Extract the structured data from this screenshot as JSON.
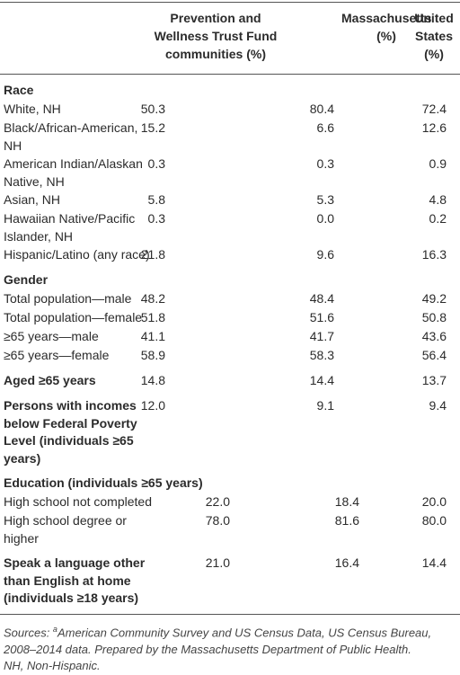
{
  "table": {
    "headers": [
      "Prevention and Wellness Trust Fund communities (%)",
      "Massachusetts (%)",
      "United States (%)"
    ],
    "sections": [
      {
        "title": "Race",
        "rows": [
          {
            "label": "White, NH",
            "values": [
              "50.3",
              "80.4",
              "72.4"
            ]
          },
          {
            "label": "Black/African-American, NH",
            "values": [
              "15.2",
              "6.6",
              "12.6"
            ]
          },
          {
            "label": "American Indian/Alaskan Native, NH",
            "values": [
              "0.3",
              "0.3",
              "0.9"
            ]
          },
          {
            "label": "Asian, NH",
            "values": [
              "5.8",
              "5.3",
              "4.8"
            ]
          },
          {
            "label": "Hawaiian Native/Pacific Islander, NH",
            "values": [
              "0.3",
              "0.0",
              "0.2"
            ]
          },
          {
            "label": "Hispanic/Latino (any race)",
            "values": [
              "21.8",
              "9.6",
              "16.3"
            ]
          }
        ]
      },
      {
        "title": "Gender",
        "rows": [
          {
            "label": "Total population—male",
            "values": [
              "48.2",
              "48.4",
              "49.2"
            ]
          },
          {
            "label": "Total population—female",
            "values": [
              "51.8",
              "51.6",
              "50.8"
            ]
          },
          {
            "label": "≥65 years—male",
            "values": [
              "41.1",
              "41.7",
              "43.6"
            ]
          },
          {
            "label": "≥65 years—female",
            "values": [
              "58.9",
              "58.3",
              "56.4"
            ]
          }
        ]
      },
      {
        "title": "Aged ≥65 years",
        "values": [
          "14.8",
          "14.4",
          "13.7"
        ]
      },
      {
        "title": "Persons with incomes below Federal Poverty Level (individuals ≥65 years)",
        "values": [
          "12.0",
          "9.1",
          "9.4"
        ]
      },
      {
        "title": "Education (individuals ≥65 years)",
        "rows": [
          {
            "label": "High school not completed",
            "values": [
              "22.0",
              "18.4",
              "20.0"
            ]
          },
          {
            "label": "High school degree or higher",
            "values": [
              "78.0",
              "81.6",
              "80.0"
            ]
          }
        ]
      },
      {
        "title": "Speak a language other than English at home (individuals ≥18 years)",
        "values": [
          "21.0",
          "16.4",
          "14.4"
        ]
      }
    ]
  },
  "footnote": {
    "lead": "Sources: ",
    "mark": "a",
    "text": "American Community Survey and US Census Data, US Census Bureau, 2008–2014 data. Prepared by the Massachusetts Department of Public Health.",
    "note": "NH, Non-Hispanic."
  }
}
